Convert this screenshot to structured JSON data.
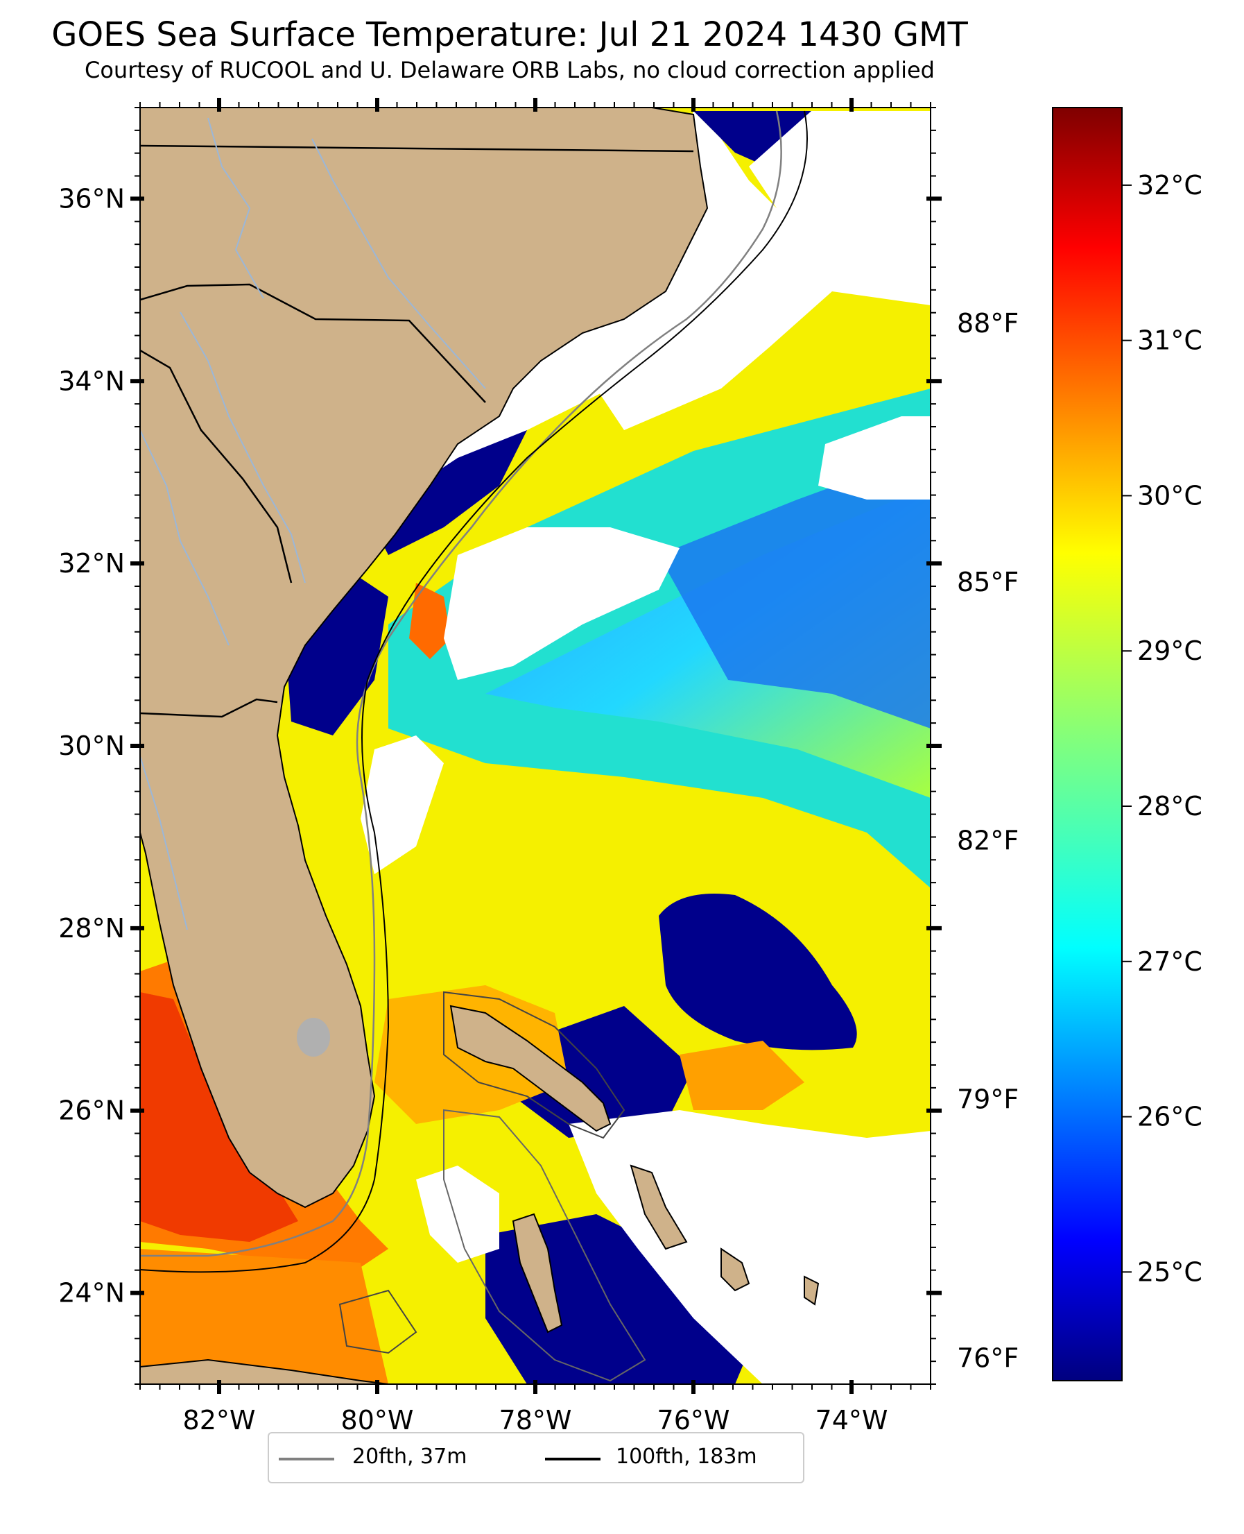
{
  "title": "GOES Sea Surface Temperature: Jul 21 2024 1430 GMT",
  "subtitle": "Courtesy of RUCOOL and U. Delaware ORB Labs, no cloud correction applied",
  "map": {
    "lon_range": [
      -83,
      -73
    ],
    "lat_range": [
      23,
      37
    ],
    "lon_ticks": [
      {
        "value": -82,
        "label": "82°W"
      },
      {
        "value": -80,
        "label": "80°W"
      },
      {
        "value": -78,
        "label": "78°W"
      },
      {
        "value": -76,
        "label": "76°W"
      },
      {
        "value": -74,
        "label": "74°W"
      }
    ],
    "lat_ticks": [
      {
        "value": 36,
        "label": "36°N"
      },
      {
        "value": 34,
        "label": "34°N"
      },
      {
        "value": 32,
        "label": "32°N"
      },
      {
        "value": 30,
        "label": "30°N"
      },
      {
        "value": 28,
        "label": "28°N"
      },
      {
        "value": 26,
        "label": "26°N"
      },
      {
        "value": 24,
        "label": "24°N"
      }
    ],
    "fahrenheit_ticks": [
      {
        "value": 88,
        "label": "88°F"
      },
      {
        "value": 85,
        "label": "85°F"
      },
      {
        "value": 82,
        "label": "82°F"
      },
      {
        "value": 79,
        "label": "79°F"
      },
      {
        "value": 76,
        "label": "76°F"
      }
    ],
    "colors": {
      "land": "#cfb28a",
      "cloud": "#ffffff",
      "state_line": "#000000",
      "river": "#9bb7d8"
    }
  },
  "colorbar": {
    "min_c": 24.3,
    "max_c": 32.5,
    "ticks": [
      {
        "value": 32,
        "label": "32°C"
      },
      {
        "value": 31,
        "label": "31°C"
      },
      {
        "value": 30,
        "label": "30°C"
      },
      {
        "value": 29,
        "label": "29°C"
      },
      {
        "value": 28,
        "label": "28°C"
      },
      {
        "value": 27,
        "label": "27°C"
      },
      {
        "value": 26,
        "label": "26°C"
      },
      {
        "value": 25,
        "label": "25°C"
      }
    ],
    "colormap": "jet"
  },
  "legend": {
    "items": [
      {
        "label": "20fth, 37m",
        "color": "#808080"
      },
      {
        "label": "100fth, 183m",
        "color": "#000000"
      }
    ]
  }
}
